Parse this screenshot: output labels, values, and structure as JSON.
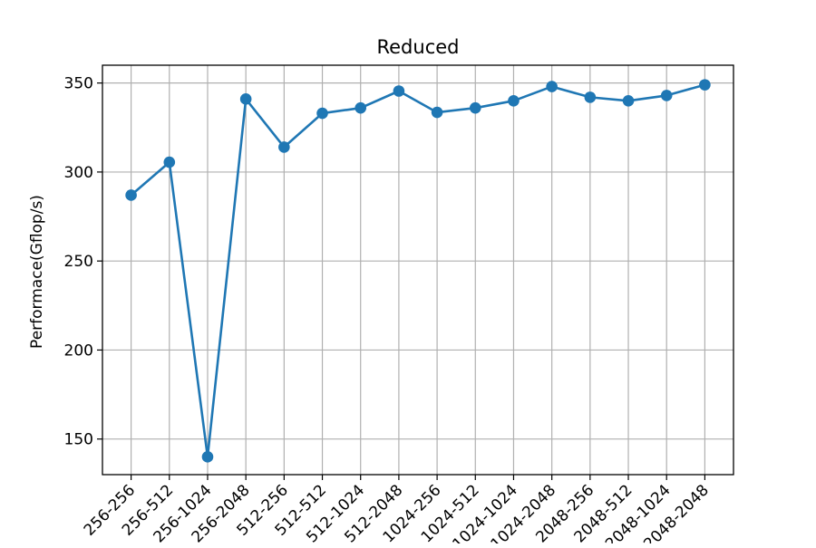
{
  "chart_data": {
    "type": "line",
    "title": "Reduced",
    "xlabel": "",
    "ylabel": "Performace(Gflop/s)",
    "categories": [
      "256-256",
      "256-512",
      "256-1024",
      "256-2048",
      "512-256",
      "512-512",
      "512-1024",
      "512-2048",
      "1024-256",
      "1024-512",
      "1024-1024",
      "1024-2048",
      "2048-256",
      "2048-512",
      "2048-1024",
      "2048-2048"
    ],
    "series": [
      {
        "values": [
          287,
          305.5,
          140,
          341,
          314,
          333,
          336,
          345.5,
          333.5,
          336,
          340,
          348,
          342,
          340,
          343,
          349
        ]
      }
    ],
    "ylim": [
      130,
      360
    ],
    "yticks": [
      150,
      200,
      250,
      300,
      350
    ],
    "grid": true,
    "legend": "none",
    "colors": {
      "line": "#1f77b4",
      "grid": "#b0b0b0"
    }
  }
}
